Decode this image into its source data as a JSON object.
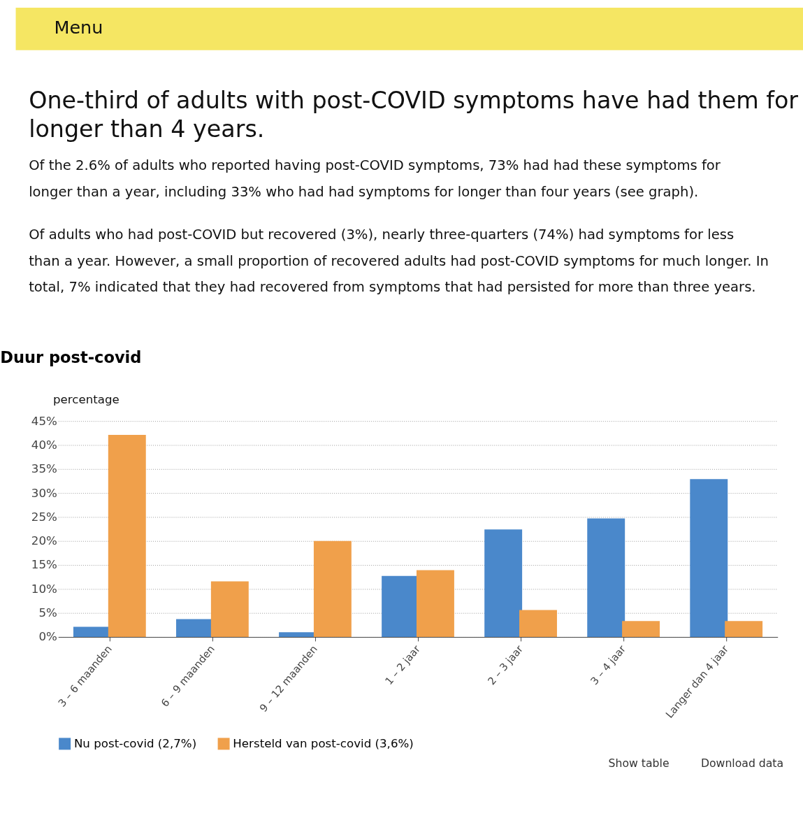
{
  "chart_data": {
    "type": "bar",
    "title": "Duur post-covid",
    "ylabel": "percentage",
    "categories": [
      "3 – 6 maanden",
      "6 – 9 maanden",
      "9 – 12 maanden",
      "1 – 2 jaar",
      "2 – 3 jaar",
      "3 – 4 jaar",
      "Langer dan 4 jaar"
    ],
    "series": [
      {
        "name": "Nu post-covid (2,7%)",
        "color": "#4a88cb",
        "values": [
          2.1,
          3.7,
          1.0,
          12.7,
          22.4,
          24.7,
          32.9
        ]
      },
      {
        "name": "Hersteld van post-covid (3,6%)",
        "color": "#f0a04b",
        "values": [
          42.1,
          11.6,
          20.0,
          13.9,
          5.6,
          3.3,
          3.3
        ]
      }
    ],
    "ylim": [
      0,
      45
    ],
    "yticks": [
      {
        "value": 0,
        "label": "0%"
      },
      {
        "value": 5,
        "label": "5%"
      },
      {
        "value": 10,
        "label": "10%"
      },
      {
        "value": 15,
        "label": "15%"
      },
      {
        "value": 20,
        "label": "20%"
      },
      {
        "value": 25,
        "label": "25%"
      },
      {
        "value": 30,
        "label": "30%"
      },
      {
        "value": 35,
        "label": "35%"
      },
      {
        "value": 40,
        "label": "40%"
      },
      {
        "value": 45,
        "label": "45%"
      }
    ],
    "grid": "y",
    "legend": "bottom left",
    "annotations": [
      "Menu",
      "One-third of adults with post-COVID symptoms have had them for",
      "longer than 4 years.",
      "Of the 2.6% of adults who reported having post-COVID symptoms, 73% had had these symptoms for",
      "longer than a year, including 33% who had had symptoms for longer than four years (see graph).",
      "Of adults who had post-COVID but recovered (3%), nearly three-quarters (74%) had symptoms for less",
      "than a year. However, a small proportion of recovered adults had post-COVID symptoms for much longer. In",
      "total, 7% indicated that they had recovered from symptoms that had persisted for more than three years.",
      "Show table",
      "Download data"
    ]
  }
}
